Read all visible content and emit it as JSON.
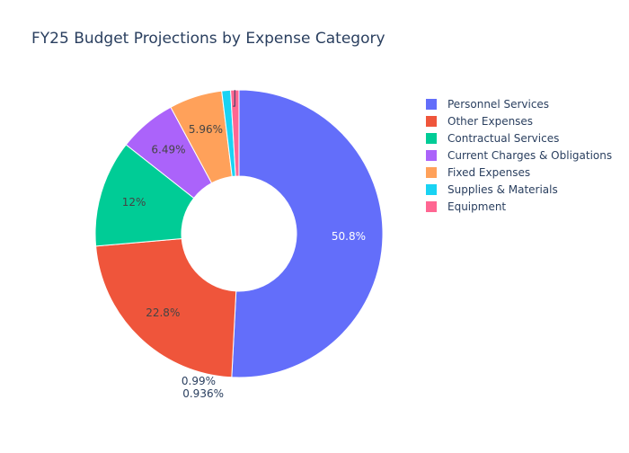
{
  "chart_data": {
    "type": "pie",
    "title": "FY25 Budget Projections by Expense Category",
    "hole": 0.4,
    "legend_position": "top-right",
    "labels": [
      "Personnel Services",
      "Other Expenses",
      "Contractual Services",
      "Current Charges & Obligations",
      "Fixed Expenses",
      "Supplies & Materials",
      "Equipment"
    ],
    "values": [
      50.8,
      22.8,
      12,
      6.49,
      5.96,
      0.99,
      0.936
    ],
    "text_labels": [
      "50.8%",
      "22.8%",
      "12%",
      "6.49%",
      "5.96%",
      "0.99%",
      "0.936%"
    ],
    "colors": [
      "#636efa",
      "#ef553b",
      "#00cc96",
      "#ab63fa",
      "#ffa15a",
      "#19d3f3",
      "#ff6692"
    ]
  }
}
